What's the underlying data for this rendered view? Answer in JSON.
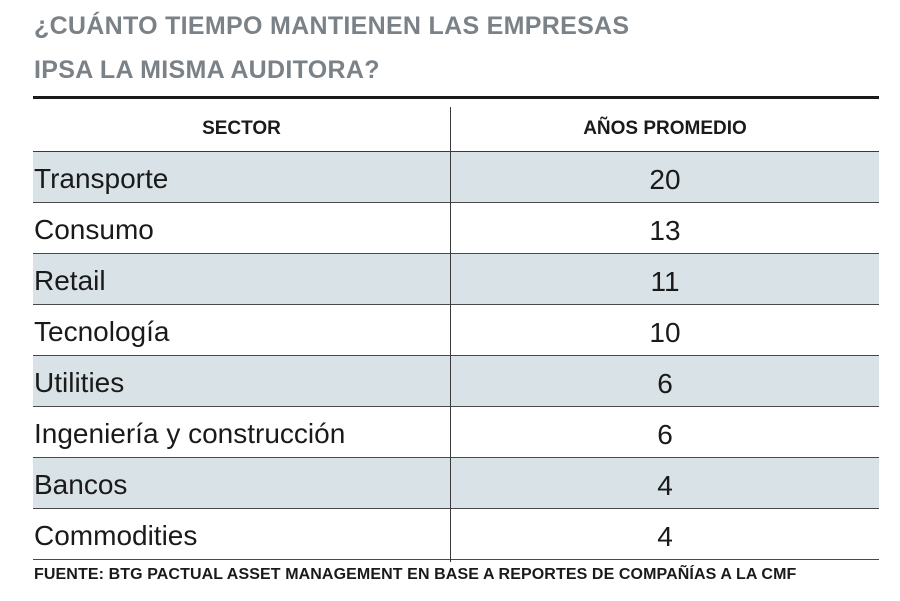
{
  "title": {
    "line1": "¿CUÁNTO TIEMPO MANTIENEN LAS EMPRESAS",
    "line2": "IPSA LA MISMA AUDITORA?"
  },
  "source": "FUENTE: BTG PACTUAL ASSET MANAGEMENT EN BASE A REPORTES DE COMPAÑÍAS A LA CMF",
  "colors": {
    "title": "#7a8288",
    "row_shade": "#d9e2e6",
    "rule": "#1a1a1a"
  },
  "chart_data": {
    "type": "table",
    "title": "¿CUÁNTO TIEMPO MANTIENEN LAS EMPRESAS IPSA LA MISMA AUDITORA?",
    "columns": [
      "SECTOR",
      "AÑOS PROMEDIO"
    ],
    "rows": [
      {
        "sector": "Transporte",
        "years": "20"
      },
      {
        "sector": "Consumo",
        "years": "13"
      },
      {
        "sector": "Retail",
        "years": "11"
      },
      {
        "sector": "Tecnología",
        "years": "10"
      },
      {
        "sector": "Utilities",
        "years": "6"
      },
      {
        "sector": "Ingeniería y construcción",
        "years": "6"
      },
      {
        "sector": "Bancos",
        "years": "4"
      },
      {
        "sector": "Commodities",
        "years": "4"
      }
    ]
  }
}
